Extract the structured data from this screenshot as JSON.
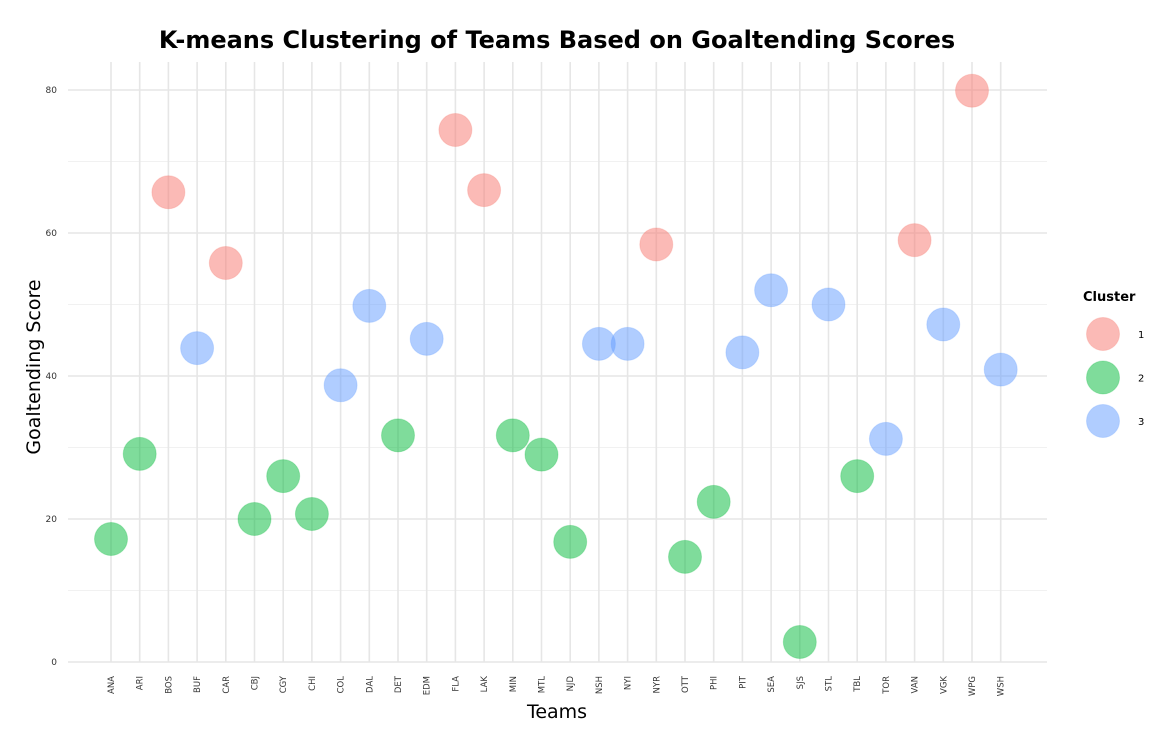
{
  "chart_data": {
    "type": "scatter",
    "title": "K-means Clustering of Teams Based on Goaltending Scores",
    "xlabel": "Teams",
    "ylabel": "Goaltending Score",
    "categories": [
      "ANA",
      "ARI",
      "BOS",
      "BUF",
      "CAR",
      "CBJ",
      "CGY",
      "CHI",
      "COL",
      "DAL",
      "DET",
      "EDM",
      "FLA",
      "LAK",
      "MIN",
      "MTL",
      "NJD",
      "NSH",
      "NYI",
      "NYR",
      "OTT",
      "PHI",
      "PIT",
      "SEA",
      "SJS",
      "STL",
      "TBL",
      "TOR",
      "VAN",
      "VGK",
      "WPG",
      "WSH"
    ],
    "ylim": [
      0,
      80
    ],
    "yticks": [
      0,
      20,
      40,
      60,
      80
    ],
    "grid": true,
    "legend": {
      "title": "Cluster",
      "position": "right",
      "entries": [
        {
          "label": "1",
          "color": "#F8766D"
        },
        {
          "label": "2",
          "color": "#00BA38"
        },
        {
          "label": "3",
          "color": "#619CFF"
        }
      ]
    },
    "points": [
      {
        "team": "ANA",
        "y": 17.2,
        "cluster": "2"
      },
      {
        "team": "ARI",
        "y": 29.1,
        "cluster": "2"
      },
      {
        "team": "BOS",
        "y": 65.7,
        "cluster": "1"
      },
      {
        "team": "BUF",
        "y": 43.9,
        "cluster": "3"
      },
      {
        "team": "CAR",
        "y": 55.8,
        "cluster": "1"
      },
      {
        "team": "CBJ",
        "y": 20.0,
        "cluster": "2"
      },
      {
        "team": "CGY",
        "y": 26.0,
        "cluster": "2"
      },
      {
        "team": "CHI",
        "y": 20.7,
        "cluster": "2"
      },
      {
        "team": "COL",
        "y": 38.7,
        "cluster": "3"
      },
      {
        "team": "DAL",
        "y": 49.8,
        "cluster": "3"
      },
      {
        "team": "DET",
        "y": 31.7,
        "cluster": "2"
      },
      {
        "team": "EDM",
        "y": 45.2,
        "cluster": "3"
      },
      {
        "team": "FLA",
        "y": 74.4,
        "cluster": "1"
      },
      {
        "team": "LAK",
        "y": 66.0,
        "cluster": "1"
      },
      {
        "team": "MIN",
        "y": 31.7,
        "cluster": "2"
      },
      {
        "team": "MTL",
        "y": 29.0,
        "cluster": "2"
      },
      {
        "team": "NJD",
        "y": 16.8,
        "cluster": "2"
      },
      {
        "team": "NSH",
        "y": 44.5,
        "cluster": "3"
      },
      {
        "team": "NYI",
        "y": 44.5,
        "cluster": "3"
      },
      {
        "team": "NYR",
        "y": 58.4,
        "cluster": "1"
      },
      {
        "team": "OTT",
        "y": 14.7,
        "cluster": "2"
      },
      {
        "team": "PHI",
        "y": 22.4,
        "cluster": "2"
      },
      {
        "team": "PIT",
        "y": 43.3,
        "cluster": "3"
      },
      {
        "team": "SEA",
        "y": 52.0,
        "cluster": "3"
      },
      {
        "team": "SJS",
        "y": 2.8,
        "cluster": "2"
      },
      {
        "team": "STL",
        "y": 50.0,
        "cluster": "3"
      },
      {
        "team": "TBL",
        "y": 26.0,
        "cluster": "2"
      },
      {
        "team": "TOR",
        "y": 31.2,
        "cluster": "3"
      },
      {
        "team": "VAN",
        "y": 59.0,
        "cluster": "1"
      },
      {
        "team": "VGK",
        "y": 47.2,
        "cluster": "3"
      },
      {
        "team": "WPG",
        "y": 79.9,
        "cluster": "1"
      },
      {
        "team": "WSH",
        "y": 40.9,
        "cluster": "3"
      }
    ]
  }
}
